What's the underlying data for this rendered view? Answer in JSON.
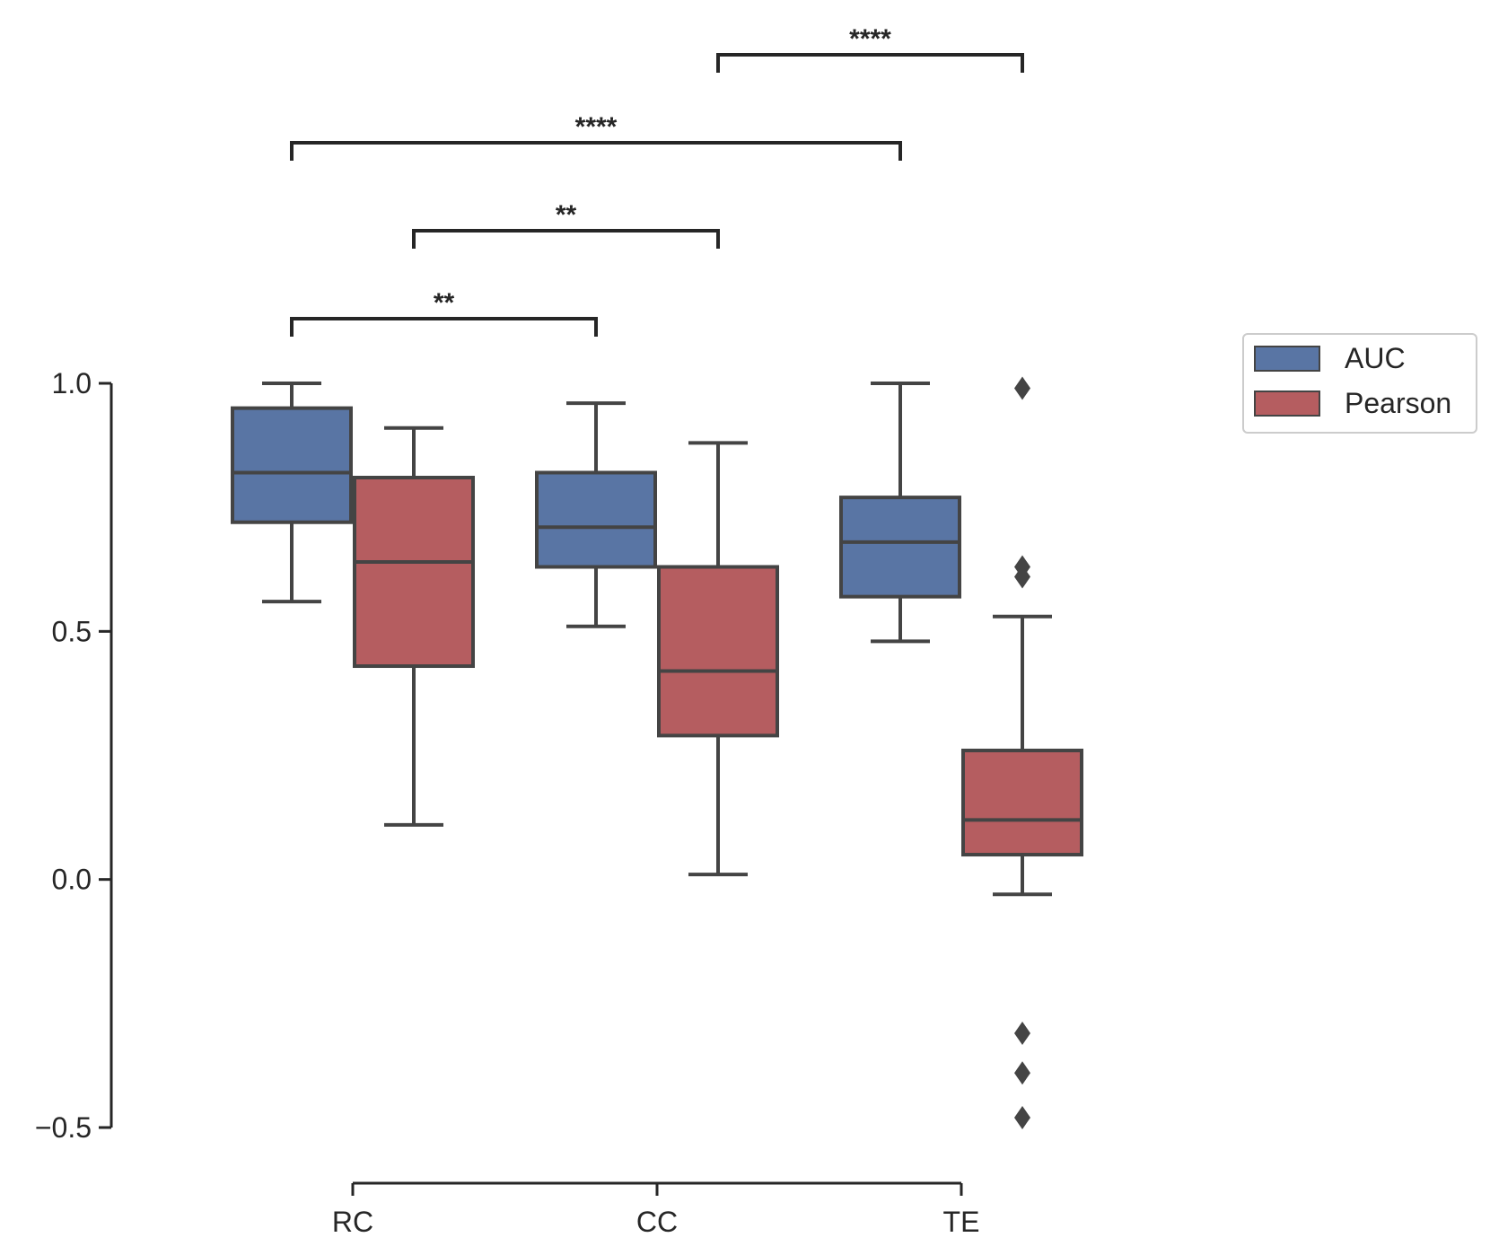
{
  "chart_data": {
    "type": "box",
    "categories": [
      "RC",
      "CC",
      "TE"
    ],
    "ylim": [
      -0.5,
      1.0
    ],
    "yticks": [
      {
        "value": 1.0,
        "label": "1.0"
      },
      {
        "value": 0.5,
        "label": "0.5"
      },
      {
        "value": 0.0,
        "label": "0.0"
      },
      {
        "value": -0.5,
        "label": "−0.5"
      }
    ],
    "xlabel": "",
    "ylabel": "",
    "legend_position": "right",
    "series": [
      {
        "name": "AUC",
        "color": "#5975A4",
        "boxes": [
          {
            "category": "RC",
            "whislo": 0.56,
            "q1": 0.72,
            "median": 0.82,
            "q3": 0.95,
            "whishi": 1.0,
            "fliers": []
          },
          {
            "category": "CC",
            "whislo": 0.51,
            "q1": 0.63,
            "median": 0.71,
            "q3": 0.82,
            "whishi": 0.96,
            "fliers": []
          },
          {
            "category": "TE",
            "whislo": 0.48,
            "q1": 0.57,
            "median": 0.68,
            "q3": 0.77,
            "whishi": 1.0,
            "fliers": []
          }
        ]
      },
      {
        "name": "Pearson",
        "color": "#B55D60",
        "boxes": [
          {
            "category": "RC",
            "whislo": 0.11,
            "q1": 0.43,
            "median": 0.64,
            "q3": 0.81,
            "whishi": 0.91,
            "fliers": []
          },
          {
            "category": "CC",
            "whislo": 0.01,
            "q1": 0.29,
            "median": 0.42,
            "q3": 0.63,
            "whishi": 0.88,
            "fliers": []
          },
          {
            "category": "TE",
            "whislo": -0.03,
            "q1": 0.05,
            "median": 0.12,
            "q3": 0.26,
            "whishi": 0.53,
            "fliers": [
              0.99,
              0.63,
              0.61,
              -0.31,
              -0.39,
              -0.48
            ]
          }
        ]
      }
    ],
    "significance": [
      {
        "from": {
          "category": "CC",
          "series": "Pearson"
        },
        "to": {
          "category": "TE",
          "series": "Pearson"
        },
        "label": "****"
      },
      {
        "from": {
          "category": "RC",
          "series": "AUC"
        },
        "to": {
          "category": "TE",
          "series": "AUC"
        },
        "label": "****"
      },
      {
        "from": {
          "category": "RC",
          "series": "Pearson"
        },
        "to": {
          "category": "CC",
          "series": "Pearson"
        },
        "label": "**"
      },
      {
        "from": {
          "category": "RC",
          "series": "AUC"
        },
        "to": {
          "category": "CC",
          "series": "AUC"
        },
        "label": "**"
      }
    ]
  }
}
